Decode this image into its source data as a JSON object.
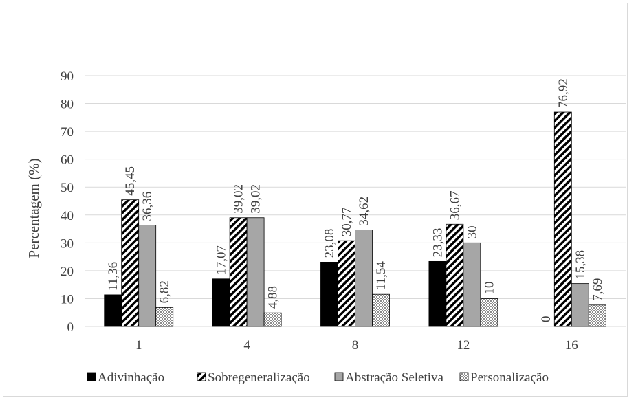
{
  "chart_data": {
    "type": "bar",
    "title": "",
    "xlabel": "",
    "ylabel": "Percentagem (%)",
    "ylim": [
      0,
      90
    ],
    "ytick_step": 10,
    "grid": true,
    "legend_position": "bottom",
    "categories": [
      "1",
      "4",
      "8",
      "12",
      "16"
    ],
    "series": [
      {
        "name": "Adivinhação",
        "pattern": "solid-black",
        "values": [
          11.36,
          17.07,
          23.08,
          23.33,
          0
        ],
        "labels": [
          "11,36",
          "17,07",
          "23,08",
          "23,33",
          "0"
        ]
      },
      {
        "name": "Sobregeneralização",
        "pattern": "diagonal-stripes",
        "values": [
          45.45,
          39.02,
          30.77,
          36.67,
          76.92
        ],
        "labels": [
          "45,45",
          "39,02",
          "30,77",
          "36,67",
          "76,92"
        ]
      },
      {
        "name": "Abstração Seletiva",
        "pattern": "solid-gray",
        "values": [
          36.36,
          39.02,
          34.62,
          30,
          15.38
        ],
        "labels": [
          "36,36",
          "39,02",
          "34,62",
          "30",
          "15,38"
        ]
      },
      {
        "name": "Personalização",
        "pattern": "checker",
        "values": [
          6.82,
          4.88,
          11.54,
          10,
          7.69
        ],
        "labels": [
          "6,82",
          "4,88",
          "11,54",
          "10",
          "7,69"
        ]
      }
    ],
    "colors": {
      "grid": "#d9d9d9",
      "text": "#404040",
      "bar_outline": "#000000",
      "gray_fill": "#a6a6a6"
    }
  }
}
